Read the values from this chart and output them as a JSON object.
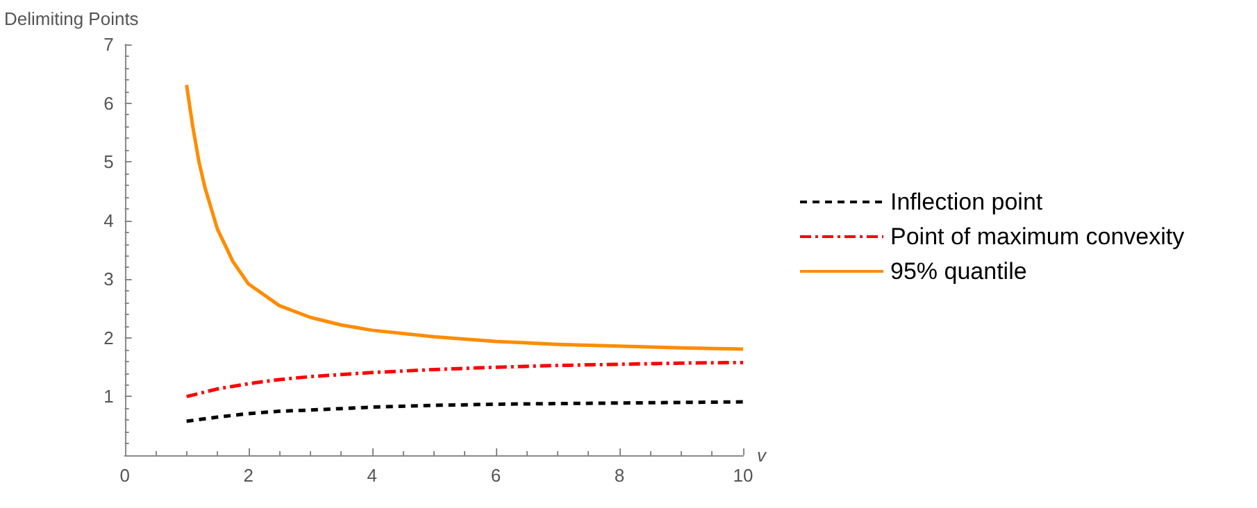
{
  "chart_data": {
    "type": "line",
    "ylabel": "Delimiting Points",
    "xlabel": "v",
    "xlim": [
      0,
      10
    ],
    "xticks": [
      0,
      2,
      4,
      6,
      8,
      10
    ],
    "ylim": [
      0,
      7
    ],
    "yticks": [
      {
        "value": 0,
        "label": null
      },
      1,
      2,
      3,
      4,
      5,
      6,
      7
    ],
    "grid": false,
    "legend": "right",
    "marker": "none",
    "series": [
      {
        "name": "Inflection point",
        "color": "#000000",
        "line_style": "dashed",
        "x": [
          1,
          1.5,
          2,
          2.5,
          3,
          4,
          5,
          6,
          7,
          8,
          9,
          10
        ],
        "values": [
          0.58,
          0.65,
          0.71,
          0.75,
          0.77,
          0.82,
          0.85,
          0.87,
          0.88,
          0.89,
          0.9,
          0.91
        ]
      },
      {
        "name": "Point of maximum convexity",
        "color": "#ff0000",
        "line_style": "dashdot",
        "x": [
          1,
          1.5,
          2,
          2.5,
          3,
          4,
          5,
          6,
          7,
          8,
          9,
          10
        ],
        "values": [
          1.0,
          1.13,
          1.22,
          1.29,
          1.34,
          1.41,
          1.46,
          1.5,
          1.53,
          1.55,
          1.57,
          1.58
        ]
      },
      {
        "name": "95% quantile",
        "color": "#ff8c00",
        "line_style": "solid",
        "x": [
          1,
          1.1,
          1.2,
          1.3,
          1.5,
          1.75,
          2,
          2.5,
          3,
          3.5,
          4,
          5,
          6,
          7,
          8,
          9,
          10
        ],
        "values": [
          6.31,
          5.6,
          5.0,
          4.55,
          3.85,
          3.3,
          2.92,
          2.55,
          2.35,
          2.22,
          2.13,
          2.02,
          1.94,
          1.89,
          1.86,
          1.83,
          1.81
        ]
      }
    ]
  }
}
